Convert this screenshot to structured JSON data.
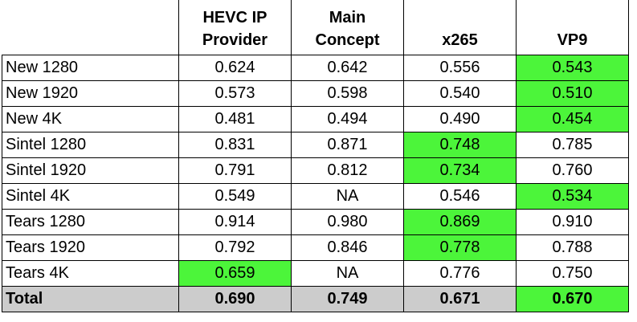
{
  "table": {
    "header": [
      [
        "HEVC IP",
        "Provider"
      ],
      [
        "Main",
        "Concept"
      ],
      [
        "x265"
      ],
      [
        "VP9"
      ]
    ],
    "highlight_color": "#4cf53a",
    "total_color": "#cccccc",
    "rows": [
      {
        "label": "New 1280",
        "values": [
          "0.624",
          "0.642",
          "0.556",
          "0.543"
        ],
        "highlight": 3
      },
      {
        "label": "New 1920",
        "values": [
          "0.573",
          "0.598",
          "0.540",
          "0.510"
        ],
        "highlight": 3
      },
      {
        "label": "New 4K",
        "values": [
          "0.481",
          "0.494",
          "0.490",
          "0.454"
        ],
        "highlight": 3
      },
      {
        "label": "Sintel 1280",
        "values": [
          "0.831",
          "0.871",
          "0.748",
          "0.785"
        ],
        "highlight": 2
      },
      {
        "label": "Sintel 1920",
        "values": [
          "0.791",
          "0.812",
          "0.734",
          "0.760"
        ],
        "highlight": 2
      },
      {
        "label": "Sintel 4K",
        "values": [
          "0.549",
          "NA",
          "0.546",
          "0.534"
        ],
        "highlight": 3
      },
      {
        "label": "Tears 1280",
        "values": [
          "0.914",
          "0.980",
          "0.869",
          "0.910"
        ],
        "highlight": 2
      },
      {
        "label": "Tears 1920",
        "values": [
          "0.792",
          "0.846",
          "0.778",
          "0.788"
        ],
        "highlight": 2
      },
      {
        "label": "Tears 4K",
        "values": [
          "0.659",
          "NA",
          "0.776",
          "0.750"
        ],
        "highlight": 0
      }
    ],
    "total": {
      "label": "Total",
      "values": [
        "0.690",
        "0.749",
        "0.671",
        "0.670"
      ],
      "highlight": 3
    }
  }
}
